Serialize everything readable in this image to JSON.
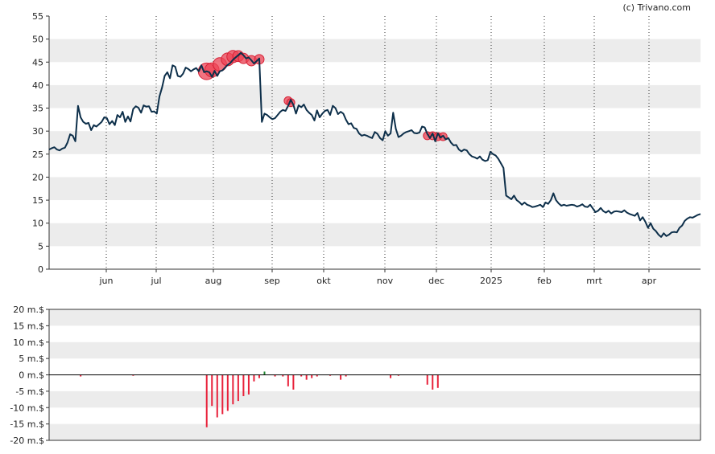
{
  "copyright": "(c) Trivano.com",
  "chart_data": [
    {
      "type": "line",
      "x_labels": [
        "jun",
        "jul",
        "aug",
        "sep",
        "okt",
        "nov",
        "dec",
        "2025",
        "feb",
        "mrt",
        "apr"
      ],
      "y_ticks": [
        0,
        5,
        10,
        15,
        20,
        25,
        30,
        35,
        40,
        45,
        50,
        55
      ],
      "ylim": [
        0,
        55
      ],
      "grid": "horizontal bands, vertical dotted at month starts",
      "line_color": "#0d2f4a",
      "values": [
        26.0,
        26.3,
        26.5,
        26.0,
        25.8,
        26.2,
        26.4,
        27.5,
        29.3,
        29.0,
        27.8,
        35.5,
        33.0,
        32.0,
        31.6,
        31.8,
        30.2,
        31.3,
        31.0,
        31.5,
        32.0,
        33.0,
        32.8,
        31.5,
        32.2,
        31.3,
        33.5,
        33.0,
        34.2,
        32.0,
        33.2,
        32.1,
        34.8,
        35.4,
        35.1,
        34.0,
        35.6,
        35.3,
        35.4,
        34.2,
        34.3,
        33.8,
        37.5,
        39.5,
        42.0,
        42.8,
        41.5,
        44.3,
        44.0,
        42.0,
        41.8,
        42.5,
        43.8,
        43.5,
        43.0,
        43.4,
        43.7,
        43.0,
        44.3,
        42.8,
        43.0,
        42.8,
        41.8,
        43.1,
        42.0,
        43.0,
        43.2,
        43.8,
        44.4,
        44.8,
        45.5,
        46.0,
        46.5,
        47.0,
        46.5,
        45.8,
        46.0,
        45.4,
        44.7,
        45.2,
        45.8,
        32.0,
        33.8,
        33.5,
        33.0,
        32.6,
        32.8,
        33.5,
        34.2,
        34.6,
        34.4,
        35.5,
        36.8,
        35.7,
        33.8,
        35.6,
        35.2,
        35.8,
        34.6,
        34.0,
        33.5,
        32.3,
        34.5,
        33.0,
        33.8,
        34.4,
        34.6,
        33.5,
        35.5,
        35.0,
        33.7,
        34.2,
        33.8,
        32.5,
        31.5,
        31.7,
        30.7,
        30.5,
        29.5,
        29.0,
        29.2,
        29.0,
        28.7,
        28.5,
        29.8,
        29.4,
        28.5,
        28.0,
        30.0,
        29.0,
        29.5,
        34.0,
        30.5,
        28.7,
        29.0,
        29.5,
        29.8,
        30.0,
        30.2,
        29.6,
        29.5,
        29.7,
        31.0,
        30.8,
        29.4,
        28.5,
        29.5,
        27.8,
        29.5,
        28.6,
        29.0,
        28.2,
        28.5,
        27.5,
        26.9,
        27.0,
        26.0,
        25.6,
        26.0,
        25.8,
        25.0,
        24.5,
        24.3,
        24.0,
        24.5,
        23.8,
        23.5,
        23.7,
        25.5,
        25.0,
        24.7,
        24.0,
        23.0,
        22.0,
        16.0,
        15.6,
        15.2,
        16.0,
        15.0,
        14.6,
        14.0,
        14.5,
        14.0,
        13.8,
        13.5,
        13.6,
        13.8,
        14.0,
        13.5,
        14.5,
        14.2,
        15.0,
        16.5,
        15.0,
        14.3,
        13.8,
        14.0,
        13.8,
        13.9,
        14.0,
        13.9,
        13.6,
        13.8,
        14.1,
        13.6,
        13.5,
        14.0,
        13.2,
        12.4,
        12.7,
        13.3,
        12.6,
        12.3,
        12.7,
        12.1,
        12.5,
        12.6,
        12.5,
        12.4,
        12.8,
        12.3,
        12.0,
        11.8,
        11.6,
        12.2,
        10.6,
        11.3,
        10.3,
        9.0,
        10.0,
        8.8,
        8.3,
        7.5,
        7.0,
        7.8,
        7.2,
        7.5,
        8.0,
        8.1,
        8.0,
        9.0,
        9.5,
        10.5,
        11.0,
        11.3,
        11.2,
        11.5,
        11.8,
        12.0
      ],
      "marker_color": "#ee4455",
      "markers": [
        {
          "index": 60,
          "value": 43.0,
          "size": 0.8
        },
        {
          "index": 62,
          "value": 43.3,
          "size": 0.6
        },
        {
          "index": 65,
          "value": 44.5,
          "size": 0.55
        },
        {
          "index": 68,
          "value": 45.6,
          "size": 0.5
        },
        {
          "index": 70,
          "value": 46.2,
          "size": 0.45
        },
        {
          "index": 72,
          "value": 46.3,
          "size": 0.35
        },
        {
          "index": 74,
          "value": 45.8,
          "size": 0.3
        },
        {
          "index": 77,
          "value": 45.3,
          "size": 0.3
        },
        {
          "index": 80,
          "value": 45.6,
          "size": 0.25
        },
        {
          "index": 91,
          "value": 36.6,
          "size": 0.12
        },
        {
          "index": 92,
          "value": 36.2,
          "size": 0.12
        },
        {
          "index": 144,
          "value": 29.0,
          "size": 0.12
        },
        {
          "index": 146,
          "value": 29.0,
          "size": 0.12
        },
        {
          "index": 148,
          "value": 28.8,
          "size": 0.12
        },
        {
          "index": 150,
          "value": 28.8,
          "size": 0.12
        }
      ]
    },
    {
      "type": "bar",
      "y_ticks": [
        "20 m.$",
        "15 m.$",
        "10 m.$",
        "5 m.$",
        "0 m.$",
        "-5 m.$",
        "-10 m.$",
        "-15 m.$",
        "-20 m.$"
      ],
      "ylim": [
        -20,
        20
      ],
      "unit": "m.$",
      "negative_color": "#e8213a",
      "positive_color": "#228833",
      "bars": [
        {
          "index": 12,
          "value": -0.5
        },
        {
          "index": 32,
          "value": -0.3
        },
        {
          "index": 60,
          "value": -16.0
        },
        {
          "index": 62,
          "value": -9.5
        },
        {
          "index": 64,
          "value": -13.0
        },
        {
          "index": 66,
          "value": -12.0
        },
        {
          "index": 68,
          "value": -11.0
        },
        {
          "index": 70,
          "value": -9.0
        },
        {
          "index": 72,
          "value": -8.0
        },
        {
          "index": 74,
          "value": -6.5
        },
        {
          "index": 76,
          "value": -6.0
        },
        {
          "index": 78,
          "value": -2.0
        },
        {
          "index": 80,
          "value": -1.0
        },
        {
          "index": 82,
          "value": 1.0
        },
        {
          "index": 86,
          "value": -0.5
        },
        {
          "index": 89,
          "value": -0.5
        },
        {
          "index": 91,
          "value": -3.5
        },
        {
          "index": 93,
          "value": -4.5
        },
        {
          "index": 96,
          "value": -0.5
        },
        {
          "index": 98,
          "value": -1.5
        },
        {
          "index": 100,
          "value": -1.0
        },
        {
          "index": 102,
          "value": -0.5
        },
        {
          "index": 107,
          "value": -0.3
        },
        {
          "index": 111,
          "value": -1.5
        },
        {
          "index": 113,
          "value": -0.5
        },
        {
          "index": 130,
          "value": -1.0
        },
        {
          "index": 133,
          "value": -0.3
        },
        {
          "index": 144,
          "value": -3.0
        },
        {
          "index": 146,
          "value": -4.5
        },
        {
          "index": 148,
          "value": -4.0
        }
      ]
    }
  ]
}
